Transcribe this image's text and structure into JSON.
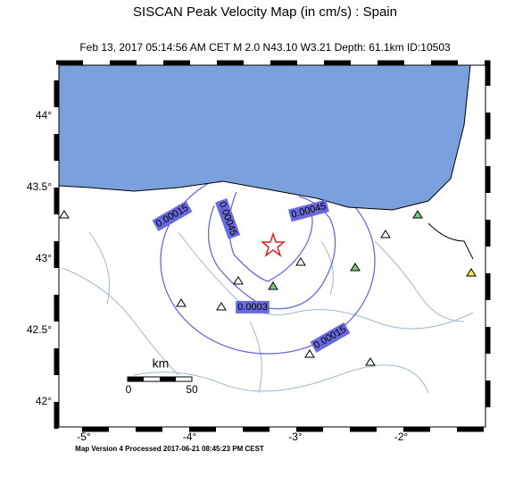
{
  "header": {
    "title": "SISCAN Peak Velocity Map (in cm/s) : Spain",
    "subtitle": "Feb 13, 2017 05:14:56 AM CET   M 2.0   N43.10 W3.21   Depth: 61.1km   ID:10503"
  },
  "axes": {
    "lon": [
      {
        "value": -5,
        "label": "-5°"
      },
      {
        "value": -4,
        "label": "-4°"
      },
      {
        "value": -3,
        "label": "-3°"
      },
      {
        "value": -2,
        "label": "-2°"
      }
    ],
    "lat": [
      {
        "value": 44,
        "label": "44°"
      },
      {
        "value": 43.5,
        "label": "43.5°"
      },
      {
        "value": 43,
        "label": "43°"
      },
      {
        "value": 42.5,
        "label": "42.5°"
      },
      {
        "value": 42,
        "label": "42°"
      }
    ]
  },
  "contour_labels": [
    "0.00015",
    "0.00045",
    "0.00045",
    "0.0003",
    "0.00015"
  ],
  "scale_bar": {
    "unit": "km",
    "start": "0",
    "end": "50"
  },
  "footer": "Map Version 4 Processed 2017-06-21 08:45:23 PM CEST"
}
